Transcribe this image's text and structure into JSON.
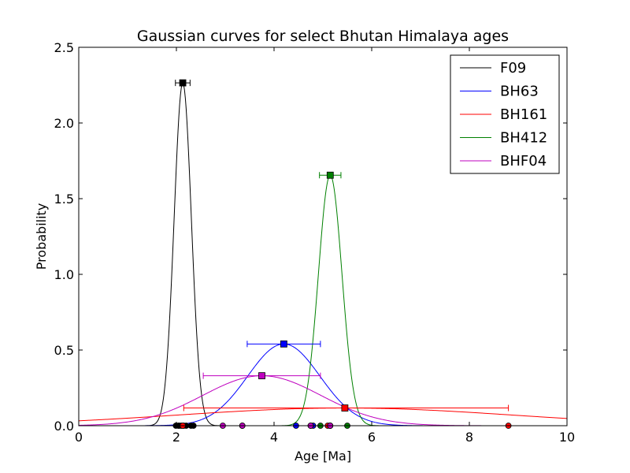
{
  "chart_data": {
    "type": "line",
    "title": "Gaussian curves for select Bhutan Himalaya ages",
    "xlabel": "Age [Ma]",
    "ylabel": "Probability",
    "xlim": [
      0,
      10
    ],
    "ylim": [
      0,
      2.5
    ],
    "xticks": [
      "0",
      "2",
      "4",
      "6",
      "8",
      "10"
    ],
    "yticks": [
      "0.0",
      "0.5",
      "1.0",
      "1.5",
      "2.0",
      "2.5"
    ],
    "legend_position": "top-right",
    "grid": false,
    "series": [
      {
        "name": "F09",
        "color": "#000000",
        "mean": 2.13,
        "sigma": 0.176,
        "peak": 2.265,
        "error_bar": [
          1.98,
          2.28
        ],
        "samples": [
          1.99,
          2.04,
          2.06,
          2.1,
          2.15,
          2.2,
          2.3,
          2.35
        ]
      },
      {
        "name": "BH63",
        "color": "#0000ff",
        "mean": 4.2,
        "sigma": 0.74,
        "peak": 0.54,
        "error_bar": [
          3.45,
          4.95
        ],
        "samples": [
          3.35,
          4.45,
          4.8,
          5.15
        ]
      },
      {
        "name": "BH161",
        "color": "#ff0000",
        "mean": 5.45,
        "sigma": 3.4,
        "peak": 0.117,
        "error_bar": [
          2.15,
          8.8
        ],
        "samples": [
          2.13,
          4.75,
          5.1,
          8.8
        ]
      },
      {
        "name": "BH412",
        "color": "#008000",
        "mean": 5.15,
        "sigma": 0.241,
        "peak": 1.655,
        "error_bar": [
          4.93,
          5.37
        ],
        "samples": [
          4.95,
          5.15,
          5.5
        ]
      },
      {
        "name": "BHF04",
        "color": "#bf00bf",
        "mean": 3.75,
        "sigma": 1.21,
        "peak": 0.33,
        "error_bar": [
          2.55,
          4.95
        ],
        "samples": [
          2.95,
          3.35,
          4.75,
          5.15
        ]
      }
    ]
  }
}
